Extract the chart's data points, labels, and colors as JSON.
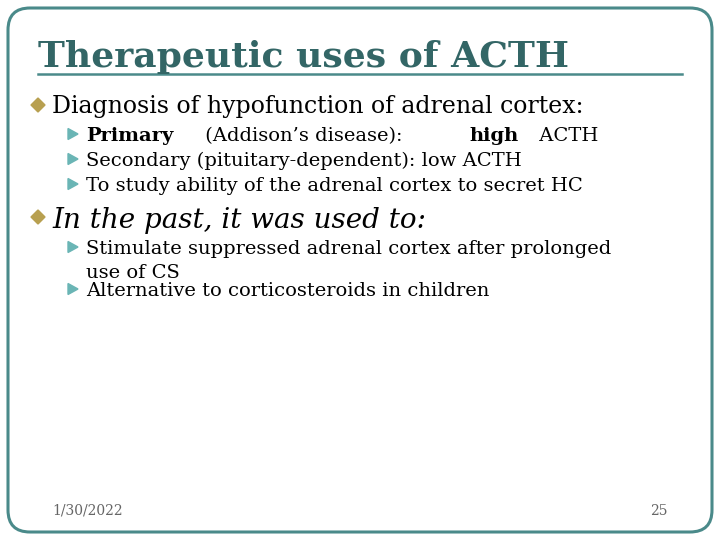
{
  "title": "Therapeutic uses of ACTH",
  "title_color": "#336666",
  "background_color": "#ffffff",
  "border_color": "#4a8a8a",
  "line_color": "#4a8a8a",
  "bullet1_text": "Diagnosis of hypofunction of adrenal cortex:",
  "sub_bullets_1": [
    [
      {
        "text": "Primary",
        "bold": true
      },
      {
        "text": " (Addison’s disease): ",
        "bold": false
      },
      {
        "text": "high",
        "bold": true
      },
      {
        "text": " ACTH",
        "bold": false
      }
    ],
    [
      {
        "text": "Secondary (pituitary-dependent): low ACTH",
        "bold": false
      }
    ],
    [
      {
        "text": "To study ability of the adrenal cortex to secret HC",
        "bold": false
      }
    ]
  ],
  "bullet2_text": "In the past, it was used to:",
  "sub_bullets_2": [
    "Stimulate suppressed adrenal cortex after prolonged\nuse of CS",
    "Alternative to corticosteroids in children"
  ],
  "arrow_color": "#6ab5b5",
  "diamond_color": "#b8a050",
  "footer_date": "1/30/2022",
  "footer_page": "25",
  "footer_color": "#666666",
  "title_fontsize": 26,
  "bullet1_fontsize": 17,
  "sub_fontsize": 14,
  "bullet2_fontsize": 20
}
